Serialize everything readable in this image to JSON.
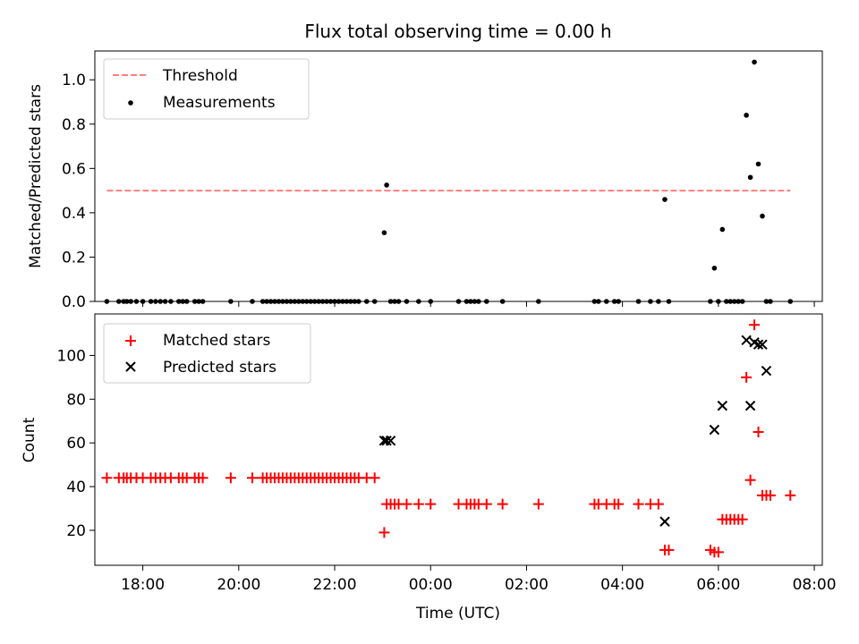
{
  "chart_data": [
    {
      "type": "scatter",
      "title": "Flux total observing time = 0.00 h",
      "xlabel": "",
      "ylabel": "Matched/Predicted stars",
      "ylim": [
        0,
        1.13
      ],
      "xlim": [
        "17:00",
        "08:10"
      ],
      "xticks": [
        "18:00",
        "20:00",
        "22:00",
        "00:00",
        "02:00",
        "04:00",
        "06:00",
        "08:00"
      ],
      "yticks": [
        "0.0",
        "0.2",
        "0.4",
        "0.6",
        "0.8",
        "1.0"
      ],
      "legend_position": "upper-left",
      "series": [
        {
          "name": "Threshold",
          "style": "dashed-line",
          "color": "#ff7f7f",
          "x": [
            "17:15",
            "07:30"
          ],
          "y": [
            0.5,
            0.5
          ]
        },
        {
          "name": "Measurements",
          "style": "dot",
          "color": "#000000",
          "x": [
            "17:15",
            "17:30",
            "17:36",
            "17:40",
            "17:45",
            "17:52",
            "18:00",
            "18:10",
            "18:16",
            "18:22",
            "18:28",
            "18:35",
            "18:45",
            "18:50",
            "18:55",
            "19:05",
            "19:10",
            "19:15",
            "19:50",
            "20:17",
            "20:30",
            "20:35",
            "20:40",
            "20:45",
            "20:50",
            "20:55",
            "21:00",
            "21:05",
            "21:10",
            "21:15",
            "21:20",
            "21:25",
            "21:30",
            "21:35",
            "21:40",
            "21:45",
            "21:50",
            "21:55",
            "22:00",
            "22:05",
            "22:10",
            "22:15",
            "22:20",
            "22:25",
            "22:30",
            "22:40",
            "22:50",
            "23:02",
            "23:05",
            "23:10",
            "23:15",
            "23:20",
            "23:30",
            "23:45",
            "00:00",
            "00:35",
            "00:45",
            "00:50",
            "00:55",
            "01:00",
            "01:10",
            "01:30",
            "02:15",
            "03:25",
            "03:30",
            "03:40",
            "03:50",
            "03:55",
            "04:20",
            "04:35",
            "04:45",
            "04:53",
            "04:58",
            "05:50",
            "05:55",
            "06:00",
            "06:05",
            "06:10",
            "06:15",
            "06:20",
            "06:25",
            "06:30",
            "06:35",
            "06:40",
            "06:45",
            "06:50",
            "06:55",
            "07:00",
            "07:05",
            "07:30"
          ],
          "y": [
            0,
            0,
            0,
            0,
            0,
            0,
            0,
            0,
            0,
            0,
            0,
            0,
            0,
            0,
            0,
            0,
            0,
            0,
            0,
            0,
            0,
            0,
            0,
            0,
            0,
            0,
            0,
            0,
            0,
            0,
            0,
            0,
            0,
            0,
            0,
            0,
            0,
            0,
            0,
            0,
            0,
            0,
            0,
            0,
            0,
            0,
            0,
            0.31,
            0.525,
            0,
            0,
            0,
            0,
            0,
            0,
            0,
            0,
            0,
            0,
            0,
            0,
            0,
            0,
            0,
            0,
            0,
            0,
            0,
            0,
            0,
            0,
            0.46,
            0,
            0,
            0.15,
            0,
            0.325,
            0,
            0,
            0,
            0,
            0,
            0.84,
            0.56,
            1.08,
            0.62,
            0.385,
            0,
            0,
            0
          ]
        }
      ]
    },
    {
      "type": "scatter",
      "title": "",
      "xlabel": "Time (UTC)",
      "ylabel": "Count",
      "ylim": [
        4,
        119
      ],
      "xlim": [
        "17:00",
        "08:10"
      ],
      "xticks": [
        "18:00",
        "20:00",
        "22:00",
        "00:00",
        "02:00",
        "04:00",
        "06:00",
        "08:00"
      ],
      "yticks": [
        "20",
        "40",
        "60",
        "80",
        "100"
      ],
      "legend_position": "upper-left",
      "series": [
        {
          "name": "Matched stars",
          "style": "plus",
          "color": "#ff0000",
          "x": [
            "17:15",
            "17:30",
            "17:36",
            "17:40",
            "17:45",
            "17:52",
            "18:00",
            "18:10",
            "18:16",
            "18:22",
            "18:28",
            "18:35",
            "18:45",
            "18:50",
            "18:55",
            "19:05",
            "19:10",
            "19:15",
            "19:50",
            "20:17",
            "20:30",
            "20:35",
            "20:40",
            "20:45",
            "20:50",
            "20:55",
            "21:00",
            "21:05",
            "21:10",
            "21:15",
            "21:20",
            "21:25",
            "21:30",
            "21:35",
            "21:40",
            "21:45",
            "21:50",
            "21:55",
            "22:00",
            "22:05",
            "22:10",
            "22:15",
            "22:20",
            "22:25",
            "22:30",
            "22:40",
            "22:50",
            "23:02",
            "23:05",
            "23:10",
            "23:15",
            "23:20",
            "23:30",
            "23:45",
            "00:00",
            "00:35",
            "00:45",
            "00:50",
            "00:55",
            "01:00",
            "01:10",
            "01:30",
            "02:15",
            "03:25",
            "03:30",
            "03:40",
            "03:50",
            "03:55",
            "04:20",
            "04:35",
            "04:45",
            "04:53",
            "04:58",
            "05:50",
            "05:55",
            "06:00",
            "06:05",
            "06:10",
            "06:15",
            "06:20",
            "06:25",
            "06:30",
            "06:35",
            "06:40",
            "06:45",
            "06:50",
            "06:55",
            "07:00",
            "07:05",
            "07:30"
          ],
          "y": [
            44,
            44,
            44,
            44,
            44,
            44,
            44,
            44,
            44,
            44,
            44,
            44,
            44,
            44,
            44,
            44,
            44,
            44,
            44,
            44,
            44,
            44,
            44,
            44,
            44,
            44,
            44,
            44,
            44,
            44,
            44,
            44,
            44,
            44,
            44,
            44,
            44,
            44,
            44,
            44,
            44,
            44,
            44,
            44,
            44,
            44,
            44,
            19,
            32,
            32,
            32,
            32,
            32,
            32,
            32,
            32,
            32,
            32,
            32,
            32,
            32,
            32,
            32,
            32,
            32,
            32,
            32,
            32,
            32,
            32,
            32,
            11,
            11,
            11,
            10,
            10,
            25,
            25,
            25,
            25,
            25,
            25,
            90,
            43,
            114,
            65,
            36,
            36,
            36,
            36
          ]
        },
        {
          "name": "Predicted stars",
          "style": "x",
          "color": "#000000",
          "x": [
            "23:02",
            "23:05",
            "23:10",
            "04:53",
            "05:55",
            "06:05",
            "06:35",
            "06:40",
            "06:45",
            "06:50",
            "06:55",
            "07:00"
          ],
          "y": [
            61,
            61,
            61,
            24,
            66,
            77,
            107,
            77,
            106,
            105,
            105,
            93
          ]
        }
      ]
    }
  ]
}
